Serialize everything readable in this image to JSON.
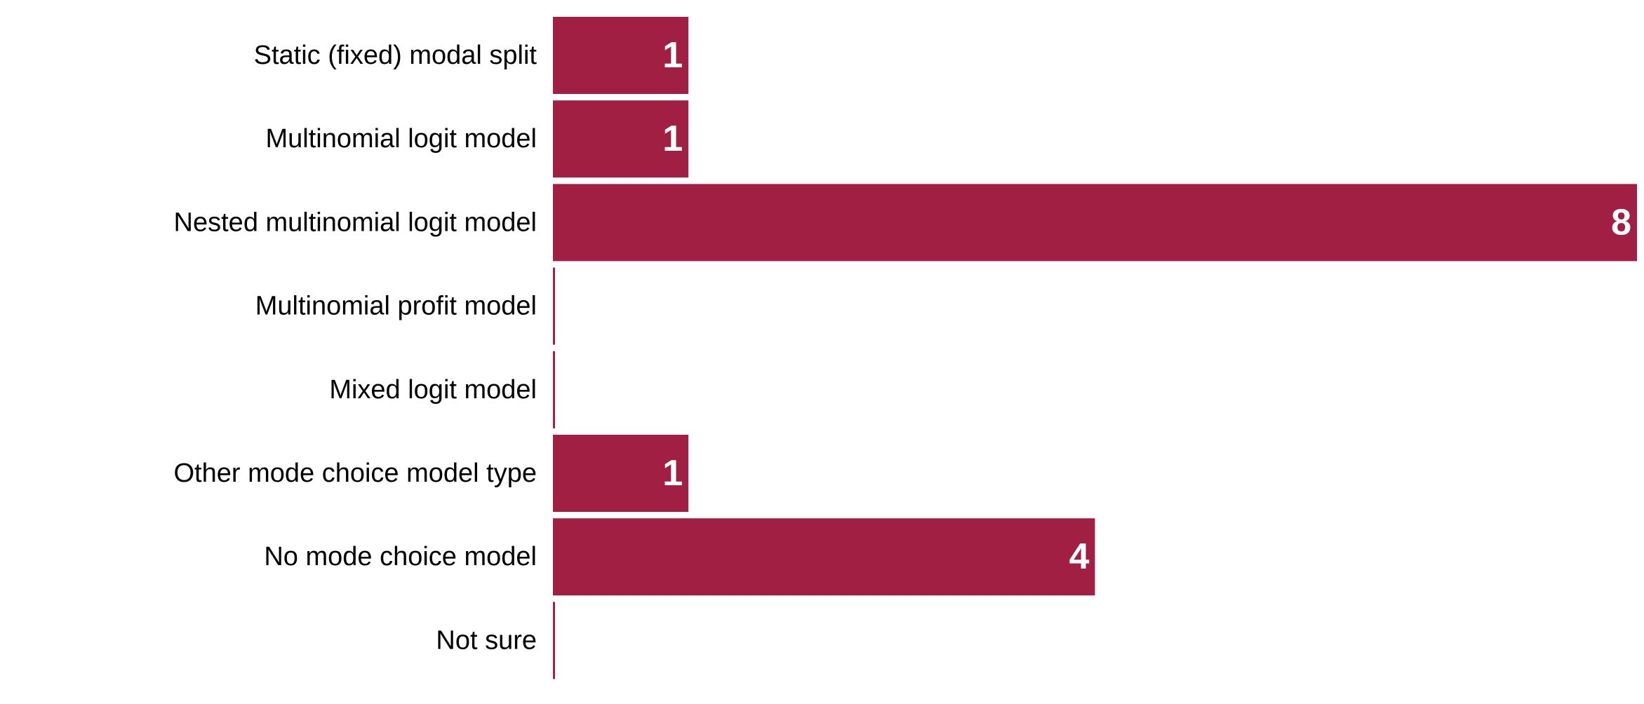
{
  "chart_data": {
    "type": "bar",
    "orientation": "horizontal",
    "categories": [
      "Static (fixed) modal split",
      "Multinomial logit model",
      "Nested multinomial logit model",
      "Multinomial profit model",
      "Mixed logit model",
      "Other mode choice model type",
      "No mode choice model",
      "Not sure"
    ],
    "values": [
      1,
      1,
      8,
      0,
      0,
      1,
      4,
      0
    ],
    "data_labels": [
      "1",
      "1",
      "8",
      "",
      "",
      "1",
      "4",
      ""
    ],
    "xlim": [
      0,
      8
    ],
    "grid": false,
    "legend": "none",
    "title": "",
    "xlabel": "",
    "ylabel": "",
    "bar_color": "#a01f43",
    "label_color": "#ffffff",
    "text_color": "#000000"
  }
}
